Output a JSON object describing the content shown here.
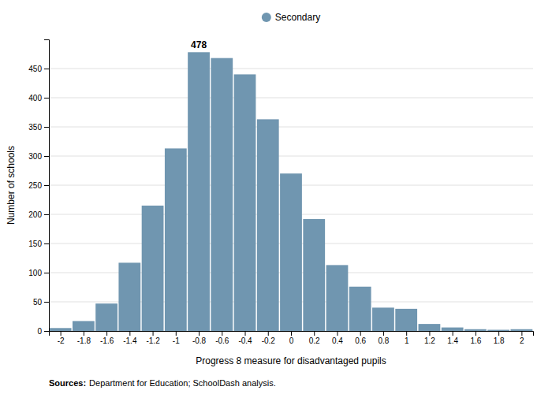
{
  "chart_data": {
    "type": "bar",
    "x": [
      -2.0,
      -1.8,
      -1.6,
      -1.4,
      -1.2,
      -1.0,
      -0.8,
      -0.6,
      -0.4,
      -0.2,
      0.0,
      0.2,
      0.4,
      0.6,
      0.8,
      1.0,
      1.2,
      1.4,
      1.6,
      1.8,
      2.0
    ],
    "series": [
      {
        "name": "Secondary",
        "color": "#7096b0",
        "values": [
          5,
          17,
          47,
          117,
          215,
          313,
          478,
          468,
          440,
          363,
          270,
          192,
          113,
          76,
          40,
          38,
          12,
          6,
          3,
          2,
          3
        ]
      }
    ],
    "xlabel": "Progress 8 measure for disadvantaged pupils",
    "ylabel": "Number of schools",
    "xlim": [
      -2.1,
      2.1
    ],
    "xticks": [
      -2.0,
      -1.8,
      -1.6,
      -1.4,
      -1.2,
      -1.0,
      -0.8,
      -0.6,
      -0.4,
      -0.2,
      0.0,
      0.2,
      0.4,
      0.6,
      0.8,
      1.0,
      1.2,
      1.4,
      1.6,
      1.8,
      2.0
    ],
    "ylim": [
      0,
      500
    ],
    "yticks": [
      0,
      50,
      100,
      150,
      200,
      250,
      300,
      350,
      400,
      450
    ],
    "grid": true,
    "legend": "top",
    "annotations": [
      {
        "text": "478",
        "x": -0.8,
        "y": 478
      }
    ],
    "source_label": "Sources:",
    "source": "Department for Education; SchoolDash analysis."
  }
}
